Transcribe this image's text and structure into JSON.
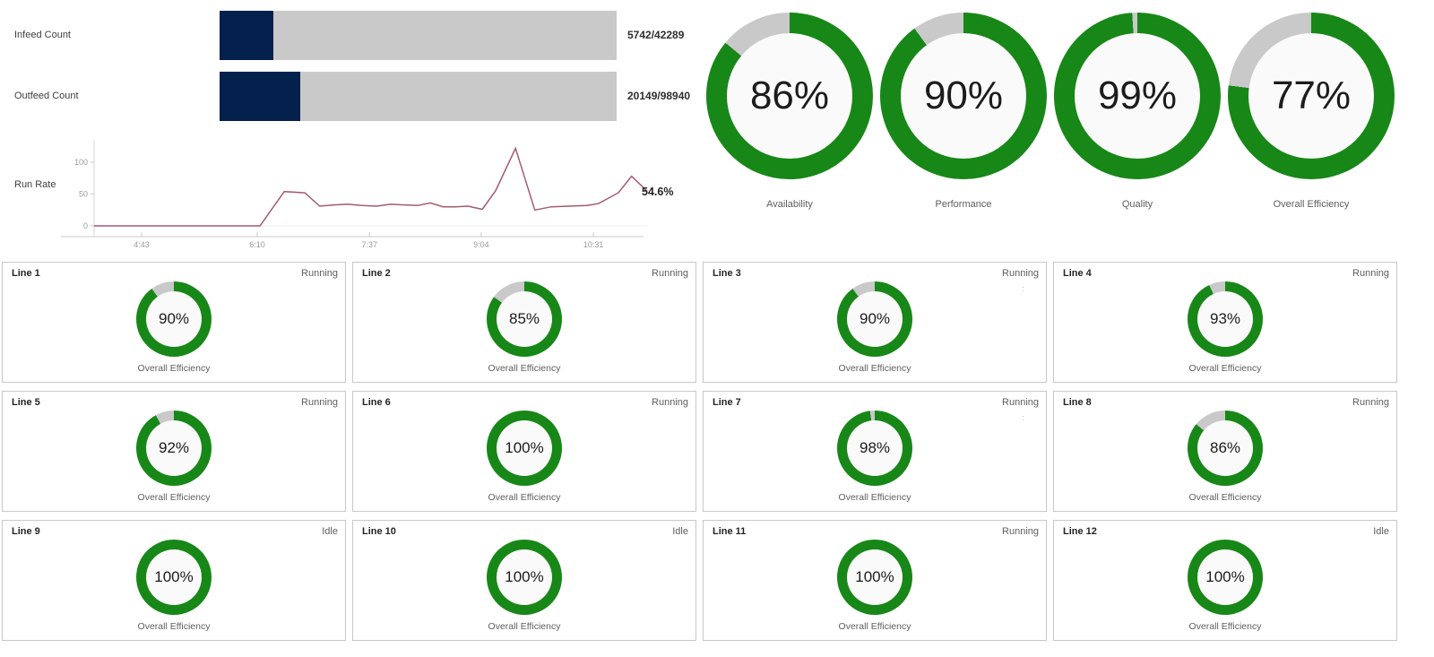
{
  "colors": {
    "navy": "#04204c",
    "bar_track": "#c9c9c9",
    "green": "#178717",
    "gauge_rest": "#c9c9c9",
    "gauge_inner": "#fafafa",
    "line": "#a25c6e",
    "axis_text": "#9a9a9a"
  },
  "chart_data": [
    {
      "type": "bar",
      "name": "feed-counters",
      "orientation": "horizontal",
      "items": [
        {
          "label": "Infeed Count",
          "value": 5742,
          "max": 42289,
          "display": "5742/42289"
        },
        {
          "label": "Outfeed Count",
          "value": 20149,
          "max": 98940,
          "display": "20149/98940"
        }
      ]
    },
    {
      "type": "line",
      "name": "run-rate",
      "title": "Run Rate",
      "current_label": "54.6%",
      "ylim": [
        0,
        130
      ],
      "yticks": [
        0,
        50,
        100
      ],
      "grid": false,
      "xticks": [
        {
          "pos": 0.086,
          "label": "4:43"
        },
        {
          "pos": 0.295,
          "label": "6:10"
        },
        {
          "pos": 0.498,
          "label": "7:37"
        },
        {
          "pos": 0.7,
          "label": "9:04"
        },
        {
          "pos": 0.903,
          "label": "10:31"
        }
      ],
      "points": [
        [
          0.0,
          0
        ],
        [
          0.3,
          0
        ],
        [
          0.344,
          54
        ],
        [
          0.381,
          52
        ],
        [
          0.408,
          31
        ],
        [
          0.434,
          33
        ],
        [
          0.459,
          34
        ],
        [
          0.485,
          32
        ],
        [
          0.511,
          31
        ],
        [
          0.536,
          34
        ],
        [
          0.562,
          33
        ],
        [
          0.585,
          32
        ],
        [
          0.608,
          36
        ],
        [
          0.631,
          30
        ],
        [
          0.653,
          30
        ],
        [
          0.676,
          31
        ],
        [
          0.702,
          26
        ],
        [
          0.726,
          55
        ],
        [
          0.762,
          122
        ],
        [
          0.797,
          25
        ],
        [
          0.827,
          30
        ],
        [
          0.859,
          31
        ],
        [
          0.891,
          32
        ],
        [
          0.912,
          35
        ],
        [
          0.948,
          52
        ],
        [
          0.972,
          78
        ],
        [
          1.0,
          54.6
        ]
      ]
    },
    {
      "type": "donut",
      "name": "oee-gauges",
      "items": [
        {
          "label": "Availability",
          "value": 86,
          "display": "86%"
        },
        {
          "label": "Performance",
          "value": 90,
          "display": "90%"
        },
        {
          "label": "Quality",
          "value": 99,
          "display": "99%"
        },
        {
          "label": "Overall Efficiency",
          "value": 77,
          "display": "77%"
        }
      ]
    },
    {
      "type": "donut",
      "name": "line-cards",
      "metric_label": "Overall Efficiency",
      "hint_glyph": ":",
      "items": [
        {
          "title": "Line 1",
          "status": "Running",
          "value": 90,
          "display": "90%"
        },
        {
          "title": "Line 2",
          "status": "Running",
          "value": 85,
          "display": "85%"
        },
        {
          "title": "Line 3",
          "status": "Running",
          "value": 90,
          "display": "90%",
          "scroll_hint": true
        },
        {
          "title": "Line 4",
          "status": "Running",
          "value": 93,
          "display": "93%"
        },
        {
          "title": "Line 5",
          "status": "Running",
          "value": 92,
          "display": "92%"
        },
        {
          "title": "Line 6",
          "status": "Running",
          "value": 100,
          "display": "100%"
        },
        {
          "title": "Line 7",
          "status": "Running",
          "value": 98,
          "display": "98%",
          "scroll_hint": true
        },
        {
          "title": "Line 8",
          "status": "Running",
          "value": 86,
          "display": "86%"
        },
        {
          "title": "Line 9",
          "status": "Idle",
          "value": 100,
          "display": "100%"
        },
        {
          "title": "Line 10",
          "status": "Idle",
          "value": 100,
          "display": "100%"
        },
        {
          "title": "Line 11",
          "status": "Running",
          "value": 100,
          "display": "100%"
        },
        {
          "title": "Line 12",
          "status": "Idle",
          "value": 100,
          "display": "100%"
        }
      ]
    }
  ]
}
